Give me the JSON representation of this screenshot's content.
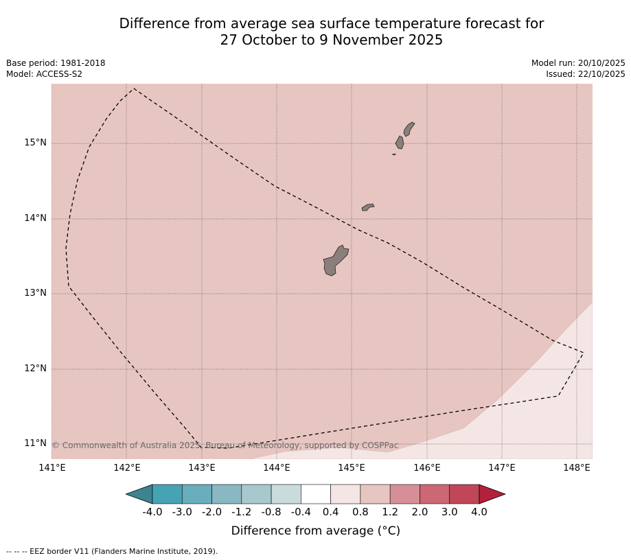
{
  "title": {
    "line1": "Difference from average sea surface temperature forecast for",
    "line2": "27 October to 9 November 2025"
  },
  "meta": {
    "base_period": "Base period: 1981-2018",
    "model": "Model: ACCESS-S2",
    "model_run": "Model run: 20/10/2025",
    "issued": "Issued: 22/10/2025"
  },
  "map": {
    "lat_ticks": [
      "15°N",
      "14°N",
      "13°N",
      "12°N",
      "11°N"
    ],
    "lon_ticks": [
      "141°E",
      "142°E",
      "143°E",
      "144°E",
      "145°E",
      "146°E",
      "147°E",
      "148°E"
    ],
    "copyright": "© Commonwealth of Australia 2025, Bureau of Meteorology, supported by COSPPac",
    "extent": {
      "lon_min": 141.0,
      "lon_max": 148.2,
      "lat_min": 10.8,
      "lat_max": 15.8
    },
    "fill_colors": {
      "background": "#e7c6c2",
      "warm_low": "#f4e6e4"
    }
  },
  "colorbar": {
    "labels": [
      "-4.0",
      "-3.0",
      "-2.0",
      "-1.2",
      "-0.8",
      "-0.4",
      "0.4",
      "0.8",
      "1.2",
      "2.0",
      "3.0",
      "4.0"
    ],
    "colors": [
      "#46a3b3",
      "#68aebc",
      "#89b7c2",
      "#a7c8cc",
      "#cadbde",
      "#ffffff",
      "#f4e6e4",
      "#e7c6c2",
      "#d78f97",
      "#cc6774",
      "#c14657"
    ],
    "under_color": "#3d8490",
    "over_color": "#b3203c",
    "title": "Difference from average (°C)"
  },
  "footer": {
    "legend": "--  --  -- EEZ border V11 (Flanders Marine Institute, 2019)."
  }
}
